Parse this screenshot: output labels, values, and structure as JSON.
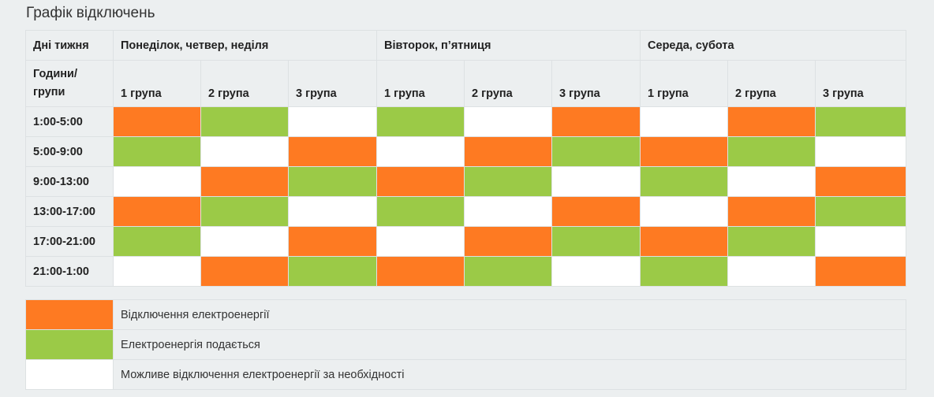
{
  "title": "Графік відключень",
  "header": {
    "days_label": "Дні тижня",
    "groups_label_line1": "Години/",
    "groups_label_line2": "групи",
    "day_groups": [
      "Понеділок, четвер, неділя",
      "Вівторок, п’ятниця",
      "Середа, субота"
    ],
    "group_labels": [
      "1 група",
      "2 група",
      "3 група",
      "1 група",
      "2 група",
      "3 група",
      "1 група",
      "2 група",
      "3 група"
    ]
  },
  "colors": {
    "off": "#fe7a22",
    "on": "#9bca47",
    "maybe": "#ffffff"
  },
  "rows": [
    {
      "time": "1:00-5:00",
      "cells": [
        "off",
        "on",
        "maybe",
        "on",
        "maybe",
        "off",
        "maybe",
        "off",
        "on"
      ]
    },
    {
      "time": "5:00-9:00",
      "cells": [
        "on",
        "maybe",
        "off",
        "maybe",
        "off",
        "on",
        "off",
        "on",
        "maybe"
      ]
    },
    {
      "time": "9:00-13:00",
      "cells": [
        "maybe",
        "off",
        "on",
        "off",
        "on",
        "maybe",
        "on",
        "maybe",
        "off"
      ]
    },
    {
      "time": "13:00-17:00",
      "cells": [
        "off",
        "on",
        "maybe",
        "on",
        "maybe",
        "off",
        "maybe",
        "off",
        "on"
      ]
    },
    {
      "time": "17:00-21:00",
      "cells": [
        "on",
        "maybe",
        "off",
        "maybe",
        "off",
        "on",
        "off",
        "on",
        "maybe"
      ]
    },
    {
      "time": "21:00-1:00",
      "cells": [
        "maybe",
        "off",
        "on",
        "off",
        "on",
        "maybe",
        "on",
        "maybe",
        "off"
      ]
    }
  ],
  "legend": [
    {
      "state": "off",
      "label": "Відключення електроенергії"
    },
    {
      "state": "on",
      "label": "Електроенергія подається"
    },
    {
      "state": "maybe",
      "label": "Можливе відключення електроенергії за необхідності"
    }
  ]
}
